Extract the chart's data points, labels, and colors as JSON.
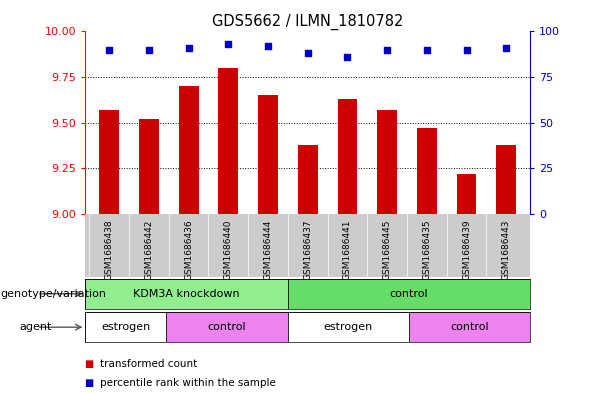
{
  "title": "GDS5662 / ILMN_1810782",
  "samples": [
    "GSM1686438",
    "GSM1686442",
    "GSM1686436",
    "GSM1686440",
    "GSM1686444",
    "GSM1686437",
    "GSM1686441",
    "GSM1686445",
    "GSM1686435",
    "GSM1686439",
    "GSM1686443"
  ],
  "bar_values": [
    9.57,
    9.52,
    9.7,
    9.8,
    9.65,
    9.38,
    9.63,
    9.57,
    9.47,
    9.22,
    9.38
  ],
  "percentile_values": [
    90,
    90,
    91,
    93,
    92,
    88,
    86,
    90,
    90,
    90,
    91
  ],
  "ylim_left": [
    9.0,
    10.0
  ],
  "ylim_right": [
    0,
    100
  ],
  "yticks_left": [
    9.0,
    9.25,
    9.5,
    9.75,
    10.0
  ],
  "yticks_right": [
    0,
    25,
    50,
    75,
    100
  ],
  "bar_color": "#cc0000",
  "dot_color": "#0000cc",
  "bar_width": 0.5,
  "genotype_groups": [
    {
      "label": "KDM3A knockdown",
      "start": 0,
      "end": 5,
      "color": "#90ee90"
    },
    {
      "label": "control",
      "start": 5,
      "end": 11,
      "color": "#66dd66"
    }
  ],
  "agent_groups": [
    {
      "label": "estrogen",
      "start": 0,
      "end": 2,
      "color": "#ffffff"
    },
    {
      "label": "control",
      "start": 2,
      "end": 5,
      "color": "#ee82ee"
    },
    {
      "label": "estrogen",
      "start": 5,
      "end": 8,
      "color": "#ffffff"
    },
    {
      "label": "control",
      "start": 8,
      "end": 11,
      "color": "#ee82ee"
    }
  ],
  "legend_items": [
    {
      "label": "transformed count",
      "color": "#cc0000"
    },
    {
      "label": "percentile rank within the sample",
      "color": "#0000cc"
    }
  ],
  "genotype_label": "genotype/variation",
  "agent_label": "agent",
  "xticklabel_bg": "#cccccc",
  "background_color": "#ffffff",
  "spine_color": "#888888"
}
